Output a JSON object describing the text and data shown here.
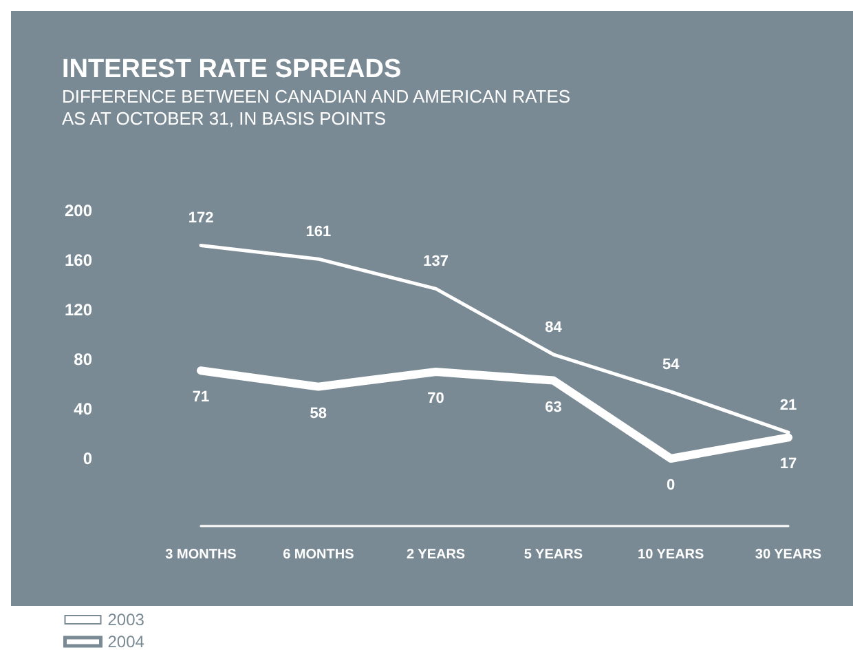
{
  "chart_data": {
    "type": "line",
    "title": "INTEREST RATE SPREADS",
    "subtitle": "DIFFERENCE BETWEEN CANADIAN AND AMERICAN RATES\nAS AT OCTOBER 31, IN BASIS POINTS",
    "categories": [
      "3 MONTHS",
      "6 MONTHS",
      "2 YEARS",
      "5 YEARS",
      "10 YEARS",
      "30 YEARS"
    ],
    "series": [
      {
        "name": "2003",
        "color": "#ffffff",
        "values": [
          172,
          161,
          137,
          84,
          54,
          21
        ]
      },
      {
        "name": "2004",
        "color": "#ffffff",
        "values": [
          71,
          58,
          70,
          63,
          0,
          17
        ]
      }
    ],
    "ylim": [
      0,
      200
    ],
    "yticks": [
      0,
      40,
      80,
      120,
      160,
      200
    ],
    "grid": false,
    "legend": "bottom left",
    "marker": "none",
    "line_style": "solid",
    "data_labels": true
  }
}
